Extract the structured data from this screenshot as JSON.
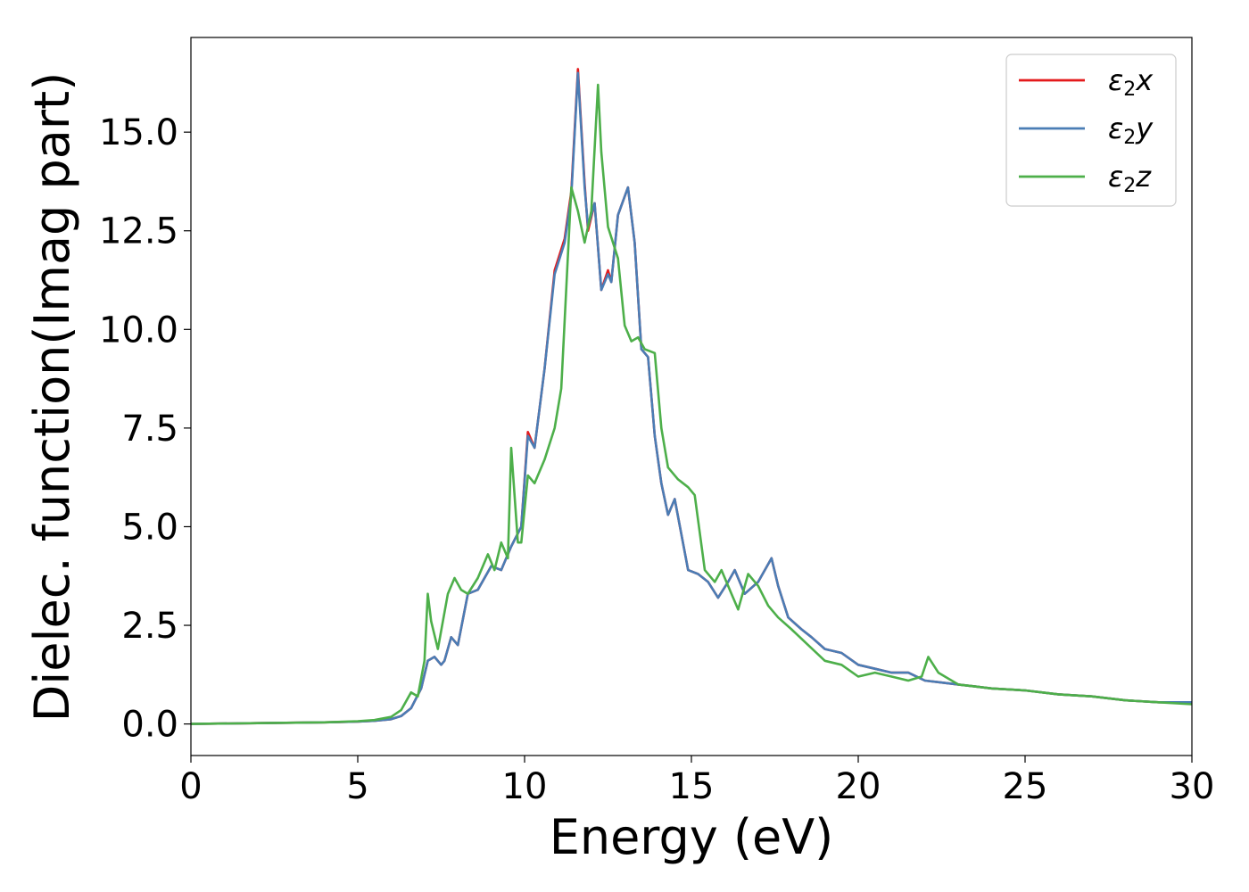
{
  "chart_data": {
    "type": "line",
    "xlabel": "Energy (eV)",
    "ylabel": "Dielec. function(Imag part)",
    "xlim": [
      0,
      30
    ],
    "ylim": [
      -0.8,
      17.4
    ],
    "xticks": [
      0,
      5,
      10,
      15,
      20,
      25,
      30
    ],
    "yticks": [
      0.0,
      2.5,
      5.0,
      7.5,
      10.0,
      12.5,
      15.0
    ],
    "xtick_labels": [
      "0",
      "5",
      "10",
      "15",
      "20",
      "25",
      "30"
    ],
    "ytick_labels": [
      "0.0",
      "2.5",
      "5.0",
      "7.5",
      "10.0",
      "12.5",
      "15.0"
    ],
    "grid": false,
    "legend_position": "top-right",
    "series": [
      {
        "name": "ε2x",
        "name_base": "ε",
        "name_sub": "2",
        "name_suffix": "x",
        "color": "#e41a1c",
        "x": [
          0,
          2,
          4,
          5,
          5.5,
          6,
          6.3,
          6.6,
          6.9,
          7.1,
          7.3,
          7.5,
          7.6,
          7.8,
          8.0,
          8.3,
          8.6,
          9.0,
          9.3,
          9.6,
          9.9,
          10.1,
          10.3,
          10.6,
          10.9,
          11.2,
          11.4,
          11.6,
          11.8,
          11.9,
          12.1,
          12.3,
          12.5,
          12.6,
          12.8,
          13.1,
          13.3,
          13.5,
          13.7,
          13.9,
          14.1,
          14.3,
          14.5,
          14.7,
          14.9,
          15.2,
          15.5,
          15.8,
          16.1,
          16.3,
          16.6,
          17.0,
          17.4,
          17.6,
          17.9,
          18.3,
          18.6,
          19.0,
          19.5,
          20.0,
          20.5,
          21.0,
          21.5,
          22.0,
          22.5,
          23.0,
          23.5,
          24.0,
          25.0,
          26.0,
          27.0,
          28.0,
          29.0,
          30.0
        ],
        "values": [
          0.0,
          0.02,
          0.04,
          0.06,
          0.08,
          0.12,
          0.2,
          0.4,
          0.9,
          1.6,
          1.7,
          1.5,
          1.6,
          2.2,
          2.0,
          3.3,
          3.4,
          4.0,
          3.9,
          4.5,
          5.0,
          7.4,
          7.0,
          9.0,
          11.5,
          12.3,
          13.5,
          16.6,
          13.7,
          12.5,
          13.2,
          11.0,
          11.5,
          11.2,
          12.9,
          13.6,
          12.2,
          9.5,
          9.3,
          7.3,
          6.1,
          5.3,
          5.7,
          4.8,
          3.9,
          3.8,
          3.6,
          3.2,
          3.6,
          3.9,
          3.3,
          3.6,
          4.2,
          3.5,
          2.7,
          2.4,
          2.2,
          1.9,
          1.8,
          1.5,
          1.4,
          1.3,
          1.3,
          1.1,
          1.05,
          1.0,
          0.95,
          0.9,
          0.85,
          0.75,
          0.7,
          0.6,
          0.55,
          0.55
        ]
      },
      {
        "name": "ε2y",
        "name_base": "ε",
        "name_sub": "2",
        "name_suffix": "y",
        "color": "#4a7db5",
        "x": [
          0,
          2,
          4,
          5,
          5.5,
          6,
          6.3,
          6.6,
          6.9,
          7.1,
          7.3,
          7.5,
          7.6,
          7.8,
          8.0,
          8.3,
          8.6,
          9.0,
          9.3,
          9.6,
          9.9,
          10.1,
          10.3,
          10.6,
          10.9,
          11.2,
          11.4,
          11.6,
          11.8,
          11.9,
          12.1,
          12.3,
          12.5,
          12.6,
          12.8,
          13.1,
          13.3,
          13.5,
          13.7,
          13.9,
          14.1,
          14.3,
          14.5,
          14.7,
          14.9,
          15.2,
          15.5,
          15.8,
          16.1,
          16.3,
          16.6,
          17.0,
          17.4,
          17.6,
          17.9,
          18.3,
          18.6,
          19.0,
          19.5,
          20.0,
          20.5,
          21.0,
          21.5,
          22.0,
          22.5,
          23.0,
          23.5,
          24.0,
          25.0,
          26.0,
          27.0,
          28.0,
          29.0,
          30.0
        ],
        "values": [
          0.0,
          0.02,
          0.04,
          0.06,
          0.08,
          0.12,
          0.2,
          0.4,
          0.9,
          1.6,
          1.7,
          1.5,
          1.6,
          2.2,
          2.0,
          3.3,
          3.4,
          4.0,
          3.9,
          4.5,
          5.0,
          7.3,
          7.0,
          9.0,
          11.4,
          12.2,
          13.4,
          16.5,
          13.6,
          12.6,
          13.2,
          11.0,
          11.4,
          11.2,
          12.9,
          13.6,
          12.2,
          9.5,
          9.3,
          7.3,
          6.1,
          5.3,
          5.7,
          4.8,
          3.9,
          3.8,
          3.6,
          3.2,
          3.6,
          3.9,
          3.3,
          3.6,
          4.2,
          3.5,
          2.7,
          2.4,
          2.2,
          1.9,
          1.8,
          1.5,
          1.4,
          1.3,
          1.3,
          1.1,
          1.05,
          1.0,
          0.95,
          0.9,
          0.85,
          0.75,
          0.7,
          0.6,
          0.55,
          0.55
        ]
      },
      {
        "name": "ε2z",
        "name_base": "ε",
        "name_sub": "2",
        "name_suffix": "z",
        "color": "#4daf4a",
        "x": [
          0,
          2,
          4,
          5,
          5.5,
          6,
          6.3,
          6.6,
          6.8,
          7.0,
          7.1,
          7.2,
          7.4,
          7.7,
          7.9,
          8.1,
          8.3,
          8.6,
          8.9,
          9.1,
          9.3,
          9.5,
          9.6,
          9.8,
          9.9,
          10.1,
          10.3,
          10.6,
          10.9,
          11.1,
          11.4,
          11.6,
          11.8,
          12.0,
          12.2,
          12.3,
          12.5,
          12.8,
          13.0,
          13.2,
          13.4,
          13.6,
          13.9,
          14.1,
          14.3,
          14.6,
          14.9,
          15.1,
          15.4,
          15.7,
          15.9,
          16.2,
          16.4,
          16.7,
          17.0,
          17.3,
          17.6,
          18.0,
          18.5,
          19.0,
          19.5,
          20.0,
          20.5,
          21.0,
          21.5,
          21.9,
          22.1,
          22.4,
          23.0,
          23.5,
          24.0,
          25.0,
          25.5,
          26.0,
          27.0,
          28.0,
          29.0,
          30.0
        ],
        "values": [
          0.0,
          0.02,
          0.04,
          0.07,
          0.1,
          0.18,
          0.35,
          0.8,
          0.7,
          1.6,
          3.3,
          2.6,
          1.9,
          3.3,
          3.7,
          3.4,
          3.3,
          3.7,
          4.3,
          3.9,
          4.6,
          4.2,
          7.0,
          4.6,
          4.6,
          6.3,
          6.1,
          6.7,
          7.5,
          8.5,
          13.6,
          13.0,
          12.2,
          13.0,
          16.2,
          14.5,
          12.6,
          11.8,
          10.1,
          9.7,
          9.8,
          9.5,
          9.4,
          7.5,
          6.5,
          6.2,
          6.0,
          5.8,
          3.9,
          3.6,
          3.9,
          3.3,
          2.9,
          3.8,
          3.5,
          3.0,
          2.7,
          2.4,
          2.0,
          1.6,
          1.5,
          1.2,
          1.3,
          1.2,
          1.1,
          1.2,
          1.7,
          1.3,
          1.0,
          0.95,
          0.9,
          0.85,
          0.8,
          0.75,
          0.7,
          0.6,
          0.55,
          0.5
        ]
      }
    ]
  }
}
